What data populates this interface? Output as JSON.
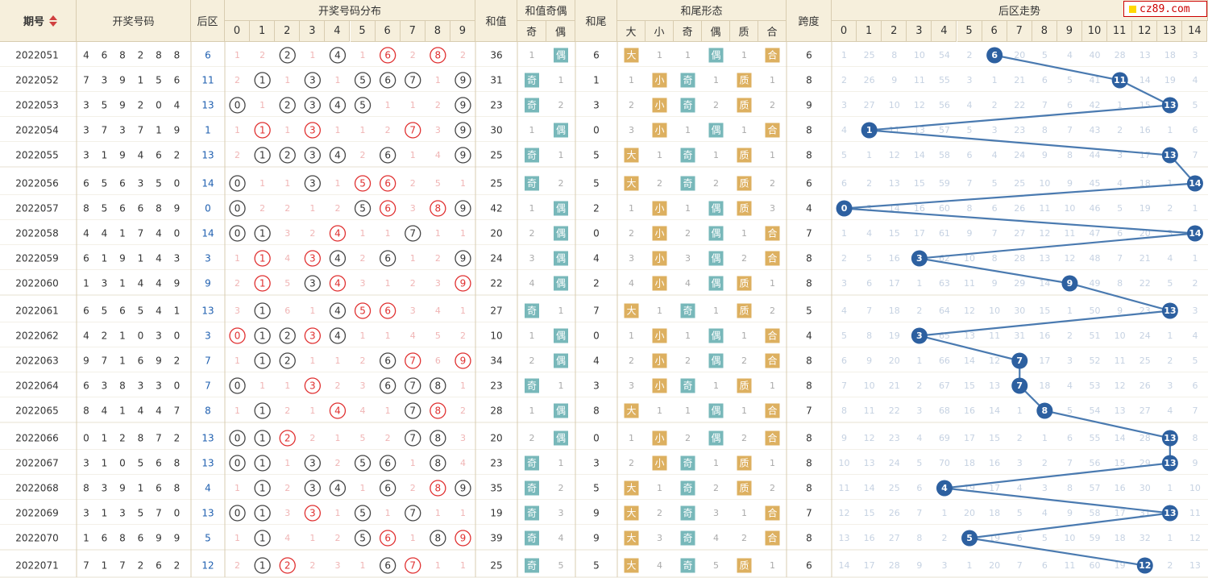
{
  "brand": "cz89.com",
  "headers": {
    "issue": "期号",
    "numbers": "开奖号码",
    "back": "后区",
    "dist": "开奖号码分布",
    "sum": "和值",
    "sum_oe": "和值奇偶",
    "odd": "奇",
    "even": "偶",
    "tail": "和尾",
    "tail_shape": "和尾形态",
    "big": "大",
    "small": "小",
    "prime": "质",
    "composite": "合",
    "span": "跨度",
    "trend": "后区走势"
  },
  "dist_cols": [
    "0",
    "1",
    "2",
    "3",
    "4",
    "5",
    "6",
    "7",
    "8",
    "9"
  ],
  "trend_cols": [
    "0",
    "1",
    "2",
    "3",
    "4",
    "5",
    "6",
    "7",
    "8",
    "9",
    "10",
    "11",
    "12",
    "13",
    "14"
  ],
  "rows": [
    {
      "issue": "2022051",
      "nums": [
        "4",
        "6",
        "8",
        "2",
        "8",
        "8"
      ],
      "back": "6",
      "dist": [
        "1",
        "2",
        "c:2",
        "1",
        "c:4",
        "1",
        "r:6",
        "2",
        "r:8",
        "2"
      ],
      "sum": "36",
      "oe": [
        "1",
        "偶"
      ],
      "tail": "6",
      "bs": [
        "大",
        "1"
      ],
      "to": [
        "1",
        "偶"
      ],
      "pc": [
        "1",
        "合"
      ],
      "span": "6",
      "trend": [
        "1",
        "25",
        "8",
        "10",
        "54",
        "2",
        "6",
        "20",
        "5",
        "4",
        "40",
        "28",
        "13",
        "18",
        "3"
      ]
    },
    {
      "issue": "2022052",
      "nums": [
        "7",
        "3",
        "9",
        "1",
        "5",
        "6"
      ],
      "back": "11",
      "dist": [
        "2",
        "c:1",
        "1",
        "c:3",
        "1",
        "c:5",
        "c:6",
        "c:7",
        "1",
        "c:9"
      ],
      "sum": "31",
      "oe": [
        "奇",
        "1"
      ],
      "tail": "1",
      "bs": [
        "1",
        "小"
      ],
      "to": [
        "奇",
        "1"
      ],
      "pc": [
        "质",
        "1"
      ],
      "span": "8",
      "trend": [
        "2",
        "26",
        "9",
        "11",
        "55",
        "3",
        "1",
        "21",
        "6",
        "5",
        "41",
        "11",
        "14",
        "19",
        "4"
      ]
    },
    {
      "issue": "2022053",
      "nums": [
        "3",
        "5",
        "9",
        "2",
        "0",
        "4"
      ],
      "back": "13",
      "dist": [
        "c:0",
        "1",
        "c:2",
        "c:3",
        "c:4",
        "c:5",
        "1",
        "1",
        "2",
        "c:9"
      ],
      "sum": "23",
      "oe": [
        "奇",
        "2"
      ],
      "tail": "3",
      "bs": [
        "2",
        "小"
      ],
      "to": [
        "奇",
        "2"
      ],
      "pc": [
        "质",
        "2"
      ],
      "span": "9",
      "trend": [
        "3",
        "27",
        "10",
        "12",
        "56",
        "4",
        "2",
        "22",
        "7",
        "6",
        "42",
        "1",
        "15",
        "13",
        "5"
      ]
    },
    {
      "issue": "2022054",
      "nums": [
        "3",
        "7",
        "3",
        "7",
        "1",
        "9"
      ],
      "back": "1",
      "dist": [
        "1",
        "r:1",
        "1",
        "r:3",
        "1",
        "1",
        "2",
        "r:7",
        "3",
        "c:9"
      ],
      "sum": "30",
      "oe": [
        "1",
        "偶"
      ],
      "tail": "0",
      "bs": [
        "3",
        "小"
      ],
      "to": [
        "1",
        "偶"
      ],
      "pc": [
        "1",
        "合"
      ],
      "span": "8",
      "trend": [
        "4",
        "1",
        "11",
        "13",
        "57",
        "5",
        "3",
        "23",
        "8",
        "7",
        "43",
        "2",
        "16",
        "1",
        "6"
      ]
    },
    {
      "issue": "2022055",
      "nums": [
        "3",
        "1",
        "9",
        "4",
        "6",
        "2"
      ],
      "back": "13",
      "dist": [
        "2",
        "c:1",
        "c:2",
        "c:3",
        "c:4",
        "2",
        "c:6",
        "1",
        "4",
        "c:9"
      ],
      "sum": "25",
      "oe": [
        "奇",
        "1"
      ],
      "tail": "5",
      "bs": [
        "大",
        "1"
      ],
      "to": [
        "奇",
        "1"
      ],
      "pc": [
        "质",
        "1"
      ],
      "span": "8",
      "trend": [
        "5",
        "1",
        "12",
        "14",
        "58",
        "6",
        "4",
        "24",
        "9",
        "8",
        "44",
        "3",
        "17",
        "13",
        "7"
      ]
    },
    {
      "issue": "2022056",
      "nums": [
        "6",
        "5",
        "6",
        "3",
        "5",
        "0"
      ],
      "back": "14",
      "dist": [
        "c:0",
        "1",
        "1",
        "c:3",
        "1",
        "r:5",
        "r:6",
        "2",
        "5",
        "1"
      ],
      "sum": "25",
      "oe": [
        "奇",
        "2"
      ],
      "tail": "5",
      "bs": [
        "大",
        "2"
      ],
      "to": [
        "奇",
        "2"
      ],
      "pc": [
        "质",
        "2"
      ],
      "span": "6",
      "trend": [
        "6",
        "2",
        "13",
        "15",
        "59",
        "7",
        "5",
        "25",
        "10",
        "9",
        "45",
        "4",
        "18",
        "1",
        "14"
      ]
    },
    {
      "issue": "2022057",
      "nums": [
        "8",
        "5",
        "6",
        "6",
        "8",
        "9"
      ],
      "back": "0",
      "dist": [
        "c:0",
        "2",
        "2",
        "1",
        "2",
        "c:5",
        "r:6",
        "3",
        "r:8",
        "c:9"
      ],
      "sum": "42",
      "oe": [
        "1",
        "偶"
      ],
      "tail": "2",
      "bs": [
        "1",
        "小"
      ],
      "to": [
        "1",
        "偶"
      ],
      "pc": [
        "质",
        "3"
      ],
      "span": "4",
      "trend": [
        "0",
        "3",
        "14",
        "16",
        "60",
        "8",
        "6",
        "26",
        "11",
        "10",
        "46",
        "5",
        "19",
        "2",
        "1"
      ]
    },
    {
      "issue": "2022058",
      "nums": [
        "4",
        "4",
        "1",
        "7",
        "4",
        "0"
      ],
      "back": "14",
      "dist": [
        "c:0",
        "c:1",
        "3",
        "2",
        "r:4",
        "1",
        "1",
        "c:7",
        "1",
        "1"
      ],
      "sum": "20",
      "oe": [
        "2",
        "偶"
      ],
      "tail": "0",
      "bs": [
        "2",
        "小"
      ],
      "to": [
        "2",
        "偶"
      ],
      "pc": [
        "1",
        "合"
      ],
      "span": "7",
      "trend": [
        "1",
        "4",
        "15",
        "17",
        "61",
        "9",
        "7",
        "27",
        "12",
        "11",
        "47",
        "6",
        "20",
        "3",
        "14"
      ]
    },
    {
      "issue": "2022059",
      "nums": [
        "6",
        "1",
        "9",
        "1",
        "4",
        "3"
      ],
      "back": "3",
      "dist": [
        "1",
        "r:1",
        "4",
        "r:3",
        "c:4",
        "2",
        "c:6",
        "1",
        "2",
        "c:9"
      ],
      "sum": "24",
      "oe": [
        "3",
        "偶"
      ],
      "tail": "4",
      "bs": [
        "3",
        "小"
      ],
      "to": [
        "3",
        "偶"
      ],
      "pc": [
        "2",
        "合"
      ],
      "span": "8",
      "trend": [
        "2",
        "5",
        "16",
        "3",
        "62",
        "10",
        "8",
        "28",
        "13",
        "12",
        "48",
        "7",
        "21",
        "4",
        "1"
      ]
    },
    {
      "issue": "2022060",
      "nums": [
        "1",
        "3",
        "1",
        "4",
        "4",
        "9"
      ],
      "back": "9",
      "dist": [
        "2",
        "r:1",
        "5",
        "c:3",
        "r:4",
        "3",
        "1",
        "2",
        "3",
        "r:9"
      ],
      "sum": "22",
      "oe": [
        "4",
        "偶"
      ],
      "tail": "2",
      "bs": [
        "4",
        "小"
      ],
      "to": [
        "4",
        "偶"
      ],
      "pc": [
        "质",
        "1"
      ],
      "span": "8",
      "trend": [
        "3",
        "6",
        "17",
        "1",
        "63",
        "11",
        "9",
        "29",
        "14",
        "9",
        "49",
        "8",
        "22",
        "5",
        "2"
      ]
    },
    {
      "issue": "2022061",
      "nums": [
        "6",
        "5",
        "6",
        "5",
        "4",
        "1"
      ],
      "back": "13",
      "dist": [
        "3",
        "c:1",
        "6",
        "1",
        "c:4",
        "r:5",
        "r:6",
        "3",
        "4",
        "1"
      ],
      "sum": "27",
      "oe": [
        "奇",
        "1"
      ],
      "tail": "7",
      "bs": [
        "大",
        "1"
      ],
      "to": [
        "奇",
        "1"
      ],
      "pc": [
        "质",
        "2"
      ],
      "span": "5",
      "trend": [
        "4",
        "7",
        "18",
        "2",
        "64",
        "12",
        "10",
        "30",
        "15",
        "1",
        "50",
        "9",
        "23",
        "13",
        "3"
      ]
    },
    {
      "issue": "2022062",
      "nums": [
        "4",
        "2",
        "1",
        "0",
        "3",
        "0"
      ],
      "back": "3",
      "dist": [
        "r:0",
        "c:1",
        "c:2",
        "r:3",
        "c:4",
        "1",
        "1",
        "4",
        "5",
        "2"
      ],
      "sum": "10",
      "oe": [
        "1",
        "偶"
      ],
      "tail": "0",
      "bs": [
        "1",
        "小"
      ],
      "to": [
        "1",
        "偶"
      ],
      "pc": [
        "1",
        "合"
      ],
      "span": "4",
      "trend": [
        "5",
        "8",
        "19",
        "3",
        "65",
        "13",
        "11",
        "31",
        "16",
        "2",
        "51",
        "10",
        "24",
        "1",
        "4"
      ]
    },
    {
      "issue": "2022063",
      "nums": [
        "9",
        "7",
        "1",
        "6",
        "9",
        "2"
      ],
      "back": "7",
      "dist": [
        "1",
        "c:1",
        "c:2",
        "1",
        "1",
        "2",
        "c:6",
        "r:7",
        "6",
        "r:9"
      ],
      "sum": "34",
      "oe": [
        "2",
        "偶"
      ],
      "tail": "4",
      "bs": [
        "2",
        "小"
      ],
      "to": [
        "2",
        "偶"
      ],
      "pc": [
        "2",
        "合"
      ],
      "span": "8",
      "trend": [
        "6",
        "9",
        "20",
        "1",
        "66",
        "14",
        "12",
        "7",
        "17",
        "3",
        "52",
        "11",
        "25",
        "2",
        "5"
      ]
    },
    {
      "issue": "2022064",
      "nums": [
        "6",
        "3",
        "8",
        "3",
        "3",
        "0"
      ],
      "back": "7",
      "dist": [
        "c:0",
        "1",
        "1",
        "r:3",
        "2",
        "3",
        "c:6",
        "c:7",
        "c:8",
        "1"
      ],
      "sum": "23",
      "oe": [
        "奇",
        "1"
      ],
      "tail": "3",
      "bs": [
        "3",
        "小"
      ],
      "to": [
        "奇",
        "1"
      ],
      "pc": [
        "质",
        "1"
      ],
      "span": "8",
      "trend": [
        "7",
        "10",
        "21",
        "2",
        "67",
        "15",
        "13",
        "7",
        "18",
        "4",
        "53",
        "12",
        "26",
        "3",
        "6"
      ]
    },
    {
      "issue": "2022065",
      "nums": [
        "8",
        "4",
        "1",
        "4",
        "4",
        "7"
      ],
      "back": "8",
      "dist": [
        "1",
        "c:1",
        "2",
        "1",
        "r:4",
        "4",
        "1",
        "c:7",
        "r:8",
        "2"
      ],
      "sum": "28",
      "oe": [
        "1",
        "偶"
      ],
      "tail": "8",
      "bs": [
        "大",
        "1"
      ],
      "to": [
        "1",
        "偶"
      ],
      "pc": [
        "1",
        "合"
      ],
      "span": "7",
      "trend": [
        "8",
        "11",
        "22",
        "3",
        "68",
        "16",
        "14",
        "1",
        "8",
        "5",
        "54",
        "13",
        "27",
        "4",
        "7"
      ]
    },
    {
      "issue": "2022066",
      "nums": [
        "0",
        "1",
        "2",
        "8",
        "7",
        "2"
      ],
      "back": "13",
      "dist": [
        "c:0",
        "c:1",
        "r:2",
        "2",
        "1",
        "5",
        "2",
        "c:7",
        "c:8",
        "3"
      ],
      "sum": "20",
      "oe": [
        "2",
        "偶"
      ],
      "tail": "0",
      "bs": [
        "1",
        "小"
      ],
      "to": [
        "2",
        "偶"
      ],
      "pc": [
        "2",
        "合"
      ],
      "span": "8",
      "trend": [
        "9",
        "12",
        "23",
        "4",
        "69",
        "17",
        "15",
        "2",
        "1",
        "6",
        "55",
        "14",
        "28",
        "13",
        "8"
      ]
    },
    {
      "issue": "2022067",
      "nums": [
        "3",
        "1",
        "0",
        "5",
        "6",
        "8"
      ],
      "back": "13",
      "dist": [
        "c:0",
        "c:1",
        "1",
        "c:3",
        "2",
        "c:5",
        "c:6",
        "1",
        "c:8",
        "4"
      ],
      "sum": "23",
      "oe": [
        "奇",
        "1"
      ],
      "tail": "3",
      "bs": [
        "2",
        "小"
      ],
      "to": [
        "奇",
        "1"
      ],
      "pc": [
        "质",
        "1"
      ],
      "span": "8",
      "trend": [
        "10",
        "13",
        "24",
        "5",
        "70",
        "18",
        "16",
        "3",
        "2",
        "7",
        "56",
        "15",
        "29",
        "13",
        "9"
      ]
    },
    {
      "issue": "2022068",
      "nums": [
        "8",
        "3",
        "9",
        "1",
        "6",
        "8"
      ],
      "back": "4",
      "dist": [
        "1",
        "c:1",
        "2",
        "c:3",
        "c:4",
        "1",
        "c:6",
        "2",
        "r:8",
        "c:9"
      ],
      "sum": "35",
      "oe": [
        "奇",
        "2"
      ],
      "tail": "5",
      "bs": [
        "大",
        "1"
      ],
      "to": [
        "奇",
        "2"
      ],
      "pc": [
        "质",
        "2"
      ],
      "span": "8",
      "trend": [
        "11",
        "14",
        "25",
        "6",
        "4",
        "19",
        "17",
        "4",
        "3",
        "8",
        "57",
        "16",
        "30",
        "1",
        "10"
      ]
    },
    {
      "issue": "2022069",
      "nums": [
        "3",
        "1",
        "3",
        "5",
        "7",
        "0"
      ],
      "back": "13",
      "dist": [
        "c:0",
        "c:1",
        "3",
        "r:3",
        "1",
        "c:5",
        "1",
        "c:7",
        "1",
        "1"
      ],
      "sum": "19",
      "oe": [
        "奇",
        "3"
      ],
      "tail": "9",
      "bs": [
        "大",
        "2"
      ],
      "to": [
        "奇",
        "3"
      ],
      "pc": [
        "1",
        "合"
      ],
      "span": "7",
      "trend": [
        "12",
        "15",
        "26",
        "7",
        "1",
        "20",
        "18",
        "5",
        "4",
        "9",
        "58",
        "17",
        "31",
        "13",
        "11"
      ]
    },
    {
      "issue": "2022070",
      "nums": [
        "1",
        "6",
        "8",
        "6",
        "9",
        "9"
      ],
      "back": "5",
      "dist": [
        "1",
        "c:1",
        "4",
        "1",
        "2",
        "c:5",
        "r:6",
        "1",
        "c:8",
        "r:9"
      ],
      "sum": "39",
      "oe": [
        "奇",
        "4"
      ],
      "tail": "9",
      "bs": [
        "大",
        "3"
      ],
      "to": [
        "奇",
        "4"
      ],
      "pc": [
        "2",
        "合"
      ],
      "span": "8",
      "trend": [
        "13",
        "16",
        "27",
        "8",
        "2",
        "5",
        "19",
        "6",
        "5",
        "10",
        "59",
        "18",
        "32",
        "1",
        "12"
      ]
    },
    {
      "issue": "2022071",
      "nums": [
        "7",
        "1",
        "7",
        "2",
        "6",
        "2"
      ],
      "back": "12",
      "dist": [
        "2",
        "c:1",
        "r:2",
        "2",
        "3",
        "1",
        "c:6",
        "r:7",
        "1",
        "1"
      ],
      "sum": "25",
      "oe": [
        "奇",
        "5"
      ],
      "tail": "5",
      "bs": [
        "大",
        "4"
      ],
      "to": [
        "奇",
        "5"
      ],
      "pc": [
        "质",
        "1"
      ],
      "span": "6",
      "trend": [
        "14",
        "17",
        "28",
        "9",
        "3",
        "1",
        "20",
        "7",
        "6",
        "11",
        "60",
        "19",
        "12",
        "2",
        "13"
      ]
    }
  ],
  "chart_data": {
    "type": "line",
    "title": "后区走势",
    "categories": [
      "2022051",
      "2022052",
      "2022053",
      "2022054",
      "2022055",
      "2022056",
      "2022057",
      "2022058",
      "2022059",
      "2022060",
      "2022061",
      "2022062",
      "2022063",
      "2022064",
      "2022065",
      "2022066",
      "2022067",
      "2022068",
      "2022069",
      "2022070",
      "2022071"
    ],
    "values": [
      6,
      11,
      13,
      1,
      13,
      14,
      0,
      14,
      3,
      9,
      13,
      3,
      7,
      7,
      8,
      13,
      13,
      4,
      13,
      5,
      12
    ],
    "ylim": [
      0,
      14
    ],
    "colors": {
      "line": "#4a7ab0",
      "dot": "#2d60a0",
      "omit": "#c6d2e2"
    }
  },
  "colors": {
    "header": "#f6efdc",
    "grid": "#e7e0d0",
    "red": "#e03030",
    "dark": "#444",
    "orange": "#ddb060",
    "teal": "#78b8ba",
    "omit": "#f0b5b5",
    "blue": "#2060b0"
  }
}
